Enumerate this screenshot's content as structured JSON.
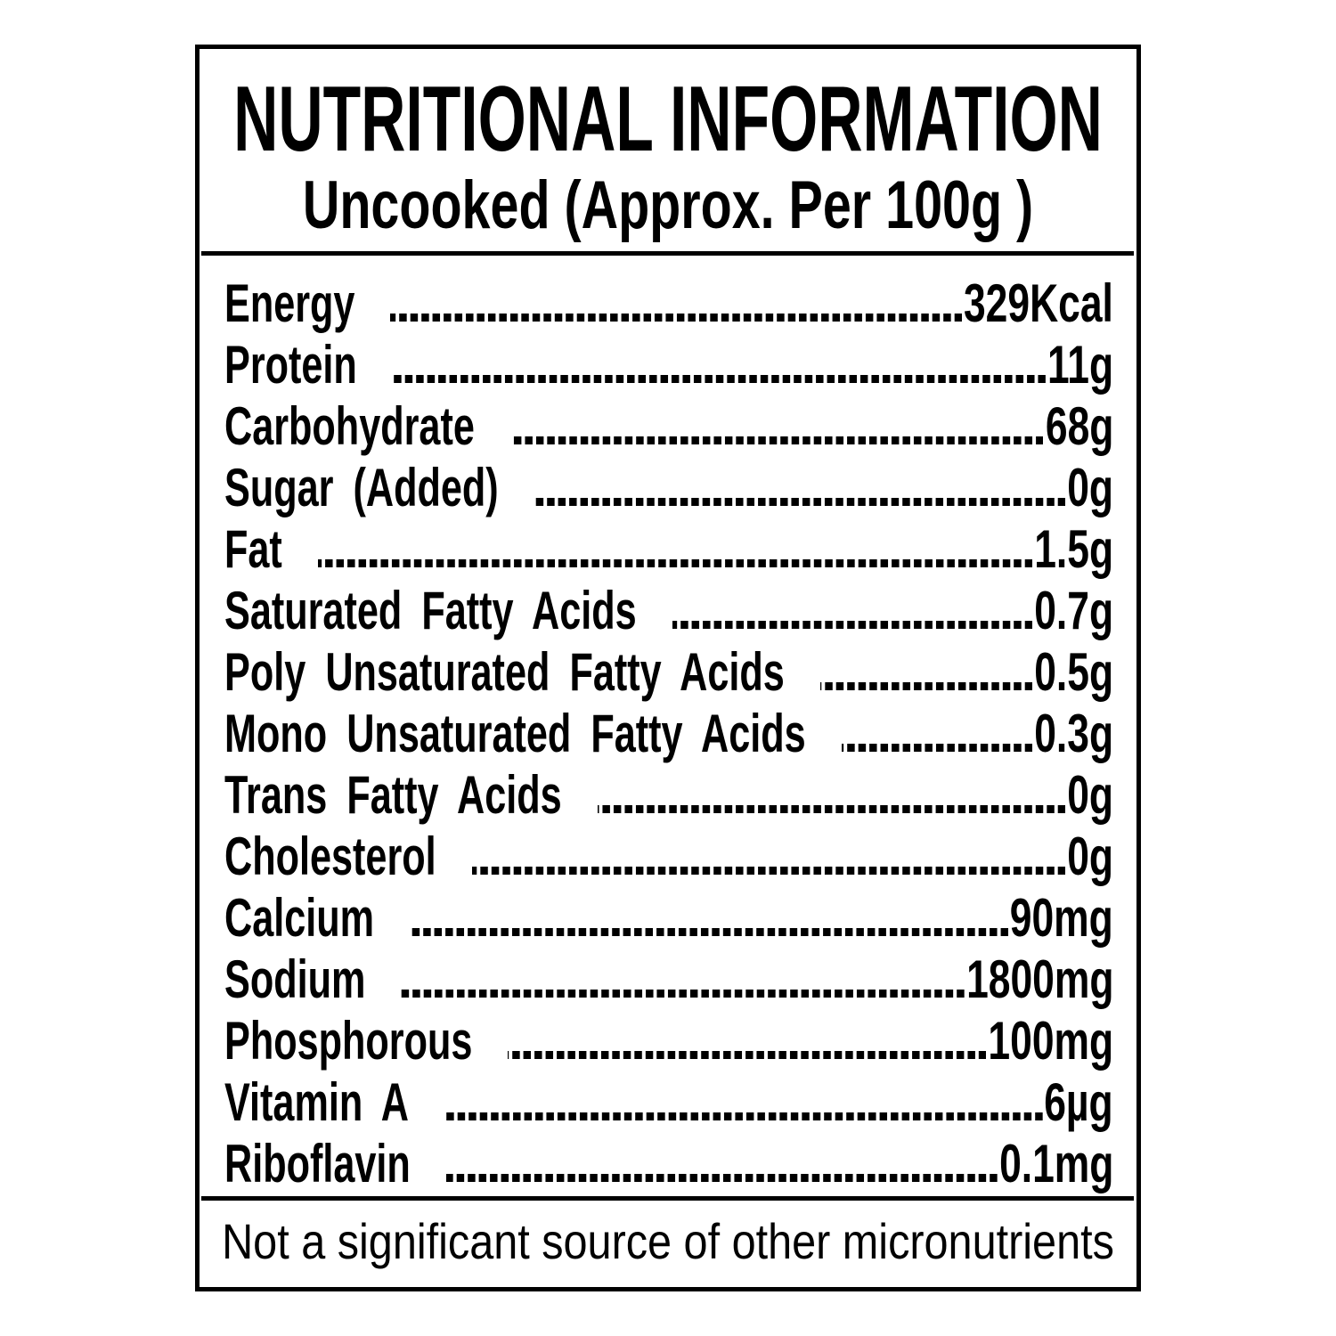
{
  "title": "NUTRITIONAL INFORMATION",
  "subtitle": "Uncooked (Approx. Per 100g )",
  "nutrients": [
    {
      "label": "Energy",
      "value": "329Kcal"
    },
    {
      "label": "Protein",
      "value": "11g"
    },
    {
      "label": "Carbohydrate",
      "value": "68g"
    },
    {
      "label": "Sugar (Added)",
      "value": "0g"
    },
    {
      "label": "Fat",
      "value": "1.5g"
    },
    {
      "label": "Saturated Fatty Acids",
      "value": "0.7g"
    },
    {
      "label": "Poly Unsaturated Fatty Acids",
      "value": "0.5g"
    },
    {
      "label": "Mono Unsaturated Fatty Acids",
      "value": "0.3g"
    },
    {
      "label": "Trans Fatty Acids",
      "value": "0g"
    },
    {
      "label": "Cholesterol",
      "value": "0g"
    },
    {
      "label": "Calcium",
      "value": "90mg"
    },
    {
      "label": "Sodium",
      "value": "1800mg"
    },
    {
      "label": "Phosphorous",
      "value": "100mg"
    },
    {
      "label": "Vitamin A",
      "value": "6µg"
    },
    {
      "label": "Riboflavin",
      "value": "0.1mg"
    }
  ],
  "footer": "Not a significant source of other micronutrients"
}
